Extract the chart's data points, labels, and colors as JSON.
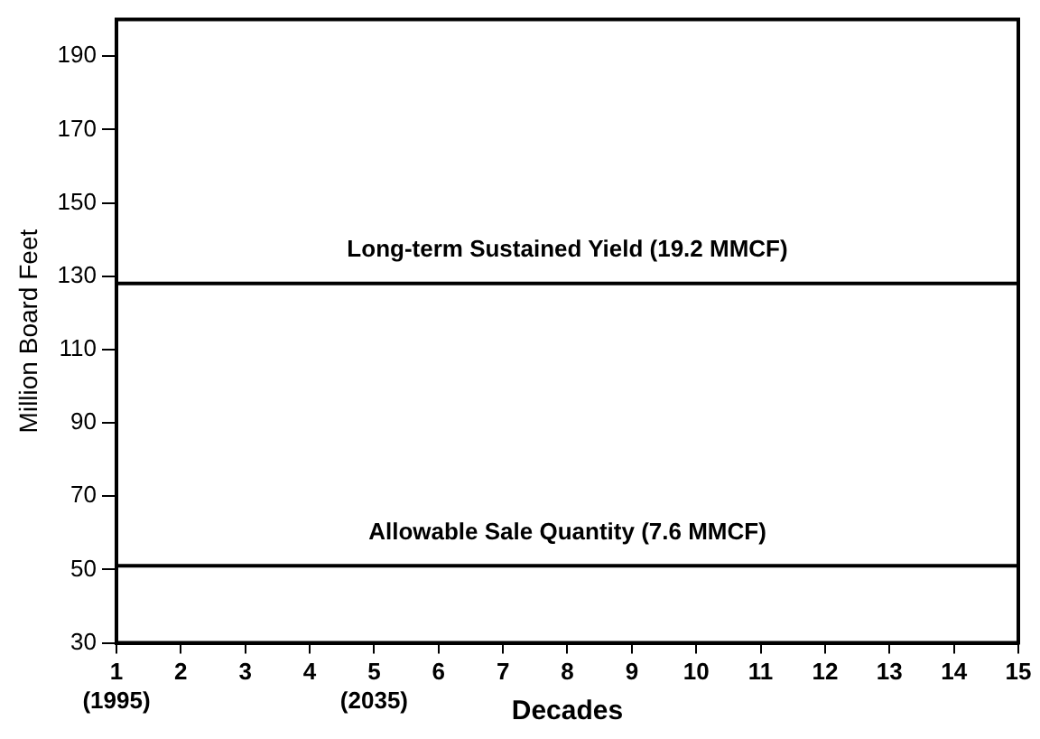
{
  "chart_data": {
    "type": "line",
    "xlabel": "Decades",
    "ylabel": "Million Board Feet",
    "xlim": [
      1,
      15
    ],
    "ylim": [
      30,
      200
    ],
    "xticks": [
      {
        "value": 1,
        "label": "1\n(1995)"
      },
      2,
      3,
      4,
      {
        "value": 5,
        "label": "5\n(2035)"
      },
      6,
      7,
      8,
      9,
      10,
      11,
      12,
      13,
      14,
      15
    ],
    "yticks": [
      30,
      50,
      70,
      90,
      110,
      130,
      150,
      170,
      190
    ],
    "ref_lines": [
      {
        "axis": "y",
        "value": 128,
        "label": "Long-term Sustained Yield (19.2 MMCF)",
        "color": "#000000",
        "line_style": "solid"
      },
      {
        "axis": "y",
        "value": 51,
        "label": "Allowable Sale Quantity (7.6 MMCF)",
        "color": "#000000",
        "line_style": "solid"
      }
    ],
    "grid": false,
    "legend": false
  }
}
